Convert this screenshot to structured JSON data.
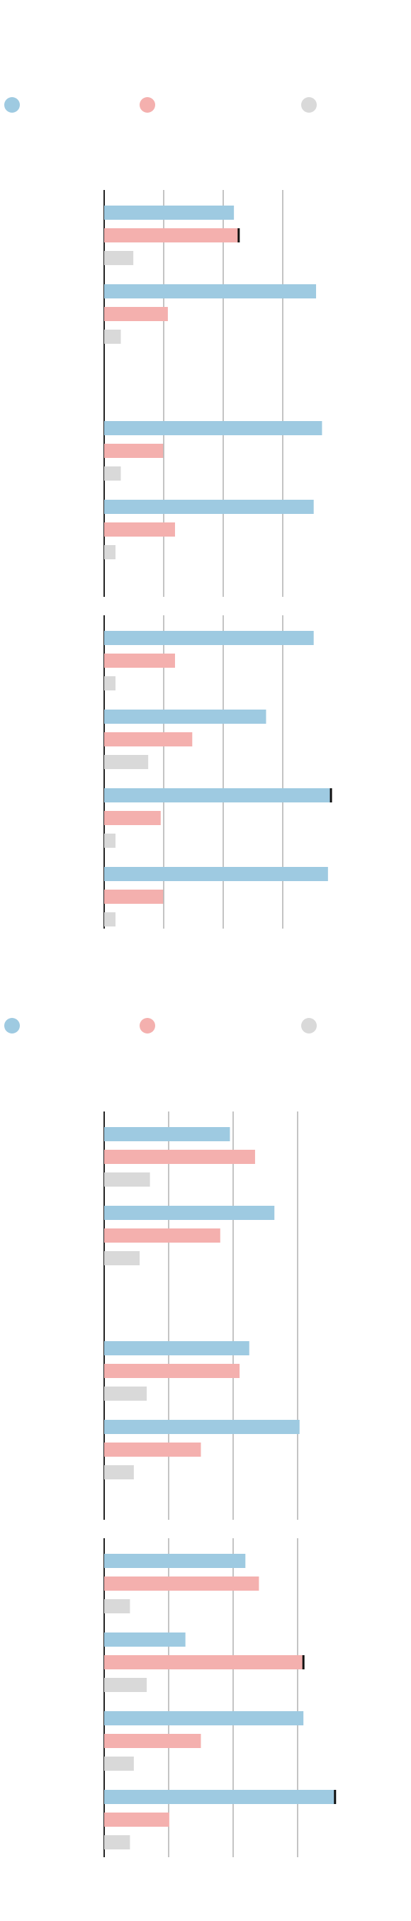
{
  "colors": {
    "series_a": "#9ecae1",
    "series_b": "#f4b0ae",
    "series_c": "#d9d9d9",
    "axis": "#222222",
    "grid": "#888888",
    "marker": "#111111"
  },
  "chart_data": [
    {
      "type": "bar",
      "orientation": "horizontal",
      "title": "",
      "xlabel": "",
      "ylabel": "",
      "xlim": [
        0,
        4
      ],
      "grid": true,
      "legend": {
        "placement": "top",
        "entries": [
          "",
          "",
          ""
        ]
      },
      "groups": [
        {
          "categories": [
            {
              "values": [
                2.18,
                2.26,
                0.49
              ],
              "markers": [
                1
              ]
            },
            {
              "values": [
                3.56,
                1.07,
                0.28
              ],
              "markers": []
            }
          ]
        },
        {
          "categories": [
            {
              "values": [
                3.66,
                0.99,
                0.28
              ],
              "markers": []
            },
            {
              "values": [
                3.52,
                1.19,
                0.19
              ],
              "markers": []
            }
          ]
        },
        {
          "categories": [
            {
              "values": [
                3.52,
                1.19,
                0.19
              ],
              "markers": []
            },
            {
              "values": [
                2.72,
                1.48,
                0.74
              ],
              "markers": []
            },
            {
              "values": [
                3.81,
                0.95,
                0.19
              ],
              "markers": [
                0
              ]
            },
            {
              "values": [
                3.76,
                0.99,
                0.19
              ],
              "markers": []
            }
          ]
        }
      ]
    },
    {
      "type": "bar",
      "orientation": "horizontal",
      "title": "",
      "xlabel": "",
      "ylabel": "",
      "xlim": [
        0,
        3
      ],
      "grid": true,
      "legend": {
        "placement": "top",
        "entries": [
          "",
          "",
          ""
        ]
      },
      "groups": [
        {
          "categories": [
            {
              "values": [
                1.95,
                2.34,
                0.71
              ],
              "markers": []
            },
            {
              "values": [
                2.64,
                1.8,
                0.55
              ],
              "markers": []
            }
          ]
        },
        {
          "categories": [
            {
              "values": [
                2.25,
                2.1,
                0.66
              ],
              "markers": []
            },
            {
              "values": [
                3.03,
                1.5,
                0.46
              ],
              "markers": []
            }
          ]
        },
        {
          "categories": [
            {
              "values": [
                2.19,
                2.4,
                0.4
              ],
              "markers": []
            },
            {
              "values": [
                1.26,
                3.09,
                0.66
              ],
              "markers": [
                1
              ]
            },
            {
              "values": [
                3.09,
                1.5,
                0.46
              ],
              "markers": []
            },
            {
              "values": [
                3.58,
                1.01,
                0.4
              ],
              "markers": [
                0
              ]
            }
          ]
        }
      ]
    }
  ]
}
